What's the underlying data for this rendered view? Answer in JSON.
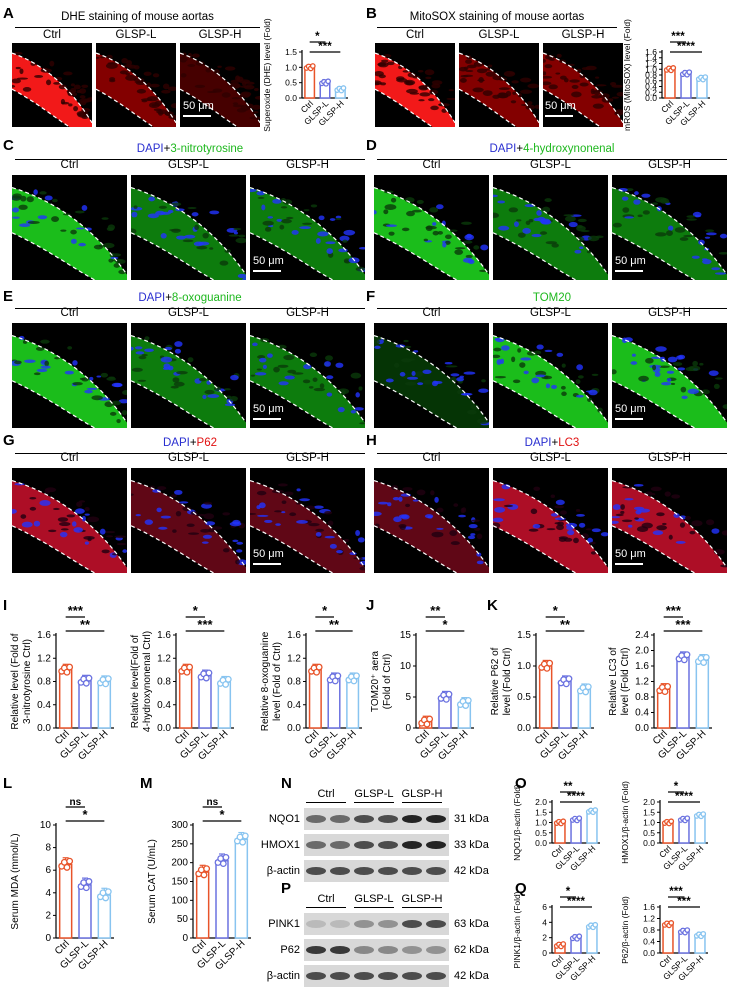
{
  "panels": {
    "A": {
      "label": "A",
      "title": "DHE staining of mouse aortas",
      "cols": [
        "Ctrl",
        "GLSP-L",
        "GLSP-H"
      ],
      "scale": "50 μm"
    },
    "B": {
      "label": "B",
      "title": "MitoSOX staining of mouse aortas",
      "cols": [
        "Ctrl",
        "GLSP-L",
        "GLSP-H"
      ],
      "scale": "50 μm"
    },
    "C": {
      "label": "C",
      "title_a": "DAPI",
      "title_plus": "+",
      "title_b": "3-nitrotyrosine",
      "cols": [
        "Ctrl",
        "GLSP-L",
        "GLSP-H"
      ],
      "scale": "50 μm"
    },
    "D": {
      "label": "D",
      "title_a": "DAPI",
      "title_plus": "+",
      "title_b": "4-hydroxynonenal",
      "cols": [
        "Ctrl",
        "GLSP-L",
        "GLSP-H"
      ],
      "scale": "50 μm"
    },
    "E": {
      "label": "E",
      "title_a": "DAPI",
      "title_plus": "+",
      "title_b": "8-oxoguanine",
      "cols": [
        "Ctrl",
        "GLSP-L",
        "GLSP-H"
      ],
      "scale": "50 μm"
    },
    "F": {
      "label": "F",
      "title_b": "TOM20",
      "cols": [
        "Ctrl",
        "GLSP-L",
        "GLSP-H"
      ],
      "scale": "50 μm"
    },
    "G": {
      "label": "G",
      "title_a": "DAPI",
      "title_plus": "+",
      "title_b": "P62",
      "cols": [
        "Ctrl",
        "GLSP-L",
        "GLSP-H"
      ],
      "scale": "50 μm"
    },
    "H": {
      "label": "H",
      "title_a": "DAPI",
      "title_plus": "+",
      "title_b": "LC3",
      "cols": [
        "Ctrl",
        "GLSP-L",
        "GLSP-H"
      ],
      "scale": "50 μm"
    },
    "I": {
      "label": "I"
    },
    "J": {
      "label": "J"
    },
    "K": {
      "label": "K"
    },
    "L": {
      "label": "L"
    },
    "M": {
      "label": "M"
    },
    "N": {
      "label": "N",
      "groups": [
        "Ctrl",
        "GLSP-L",
        "GLSP-H"
      ],
      "bands": [
        {
          "name": "NQO1",
          "kda": "31 kDa"
        },
        {
          "name": "HMOX1",
          "kda": "33 kDa"
        },
        {
          "name": "β-actin",
          "kda": "42 kDa"
        }
      ]
    },
    "O": {
      "label": "O"
    },
    "P": {
      "label": "P",
      "groups": [
        "Ctrl",
        "GLSP-L",
        "GLSP-H"
      ],
      "bands": [
        {
          "name": "PINK1",
          "kda": "63 kDa"
        },
        {
          "name": "P62",
          "kda": "62 kDa"
        },
        {
          "name": "β-actin",
          "kda": "42 kDa"
        }
      ]
    },
    "Q": {
      "label": "Q"
    }
  },
  "colors": {
    "ctrl": "#e8542a",
    "glspl": "#6b72e0",
    "glsph": "#88c4f0",
    "dhe": "#ff1a1a",
    "green": "#22dd22",
    "dapi": "#2233ff"
  },
  "chart_data": [
    {
      "id": "A",
      "type": "bar",
      "categories": [
        "Ctrl",
        "GLSP-L",
        "GLSP-H"
      ],
      "values": [
        1.0,
        0.5,
        0.28
      ],
      "ylabel": "Superoxide (DHE) level (Fold)",
      "ylim": [
        0,
        1.5
      ],
      "yticks": [
        "0.0",
        "0.5",
        "1.0",
        "1.5"
      ],
      "sig": [
        {
          "a": 0,
          "b": 1,
          "text": "*"
        },
        {
          "a": 0,
          "b": 2,
          "text": "***"
        }
      ]
    },
    {
      "id": "B",
      "type": "bar",
      "categories": [
        "Ctrl",
        "GLSP-L",
        "GLSP-H"
      ],
      "values": [
        1.0,
        0.85,
        0.68
      ],
      "ylabel": "mROS (MitoSOX) level (Fold)",
      "ylim": [
        0,
        1.6
      ],
      "yticks": [
        "0.0",
        "0.2",
        "0.4",
        "0.6",
        "0.8",
        "1.0",
        "1.2",
        "1.4",
        "1.6"
      ],
      "sig": [
        {
          "a": 0,
          "b": 1,
          "text": "***"
        },
        {
          "a": 0,
          "b": 2,
          "text": "****"
        }
      ]
    },
    {
      "id": "I1",
      "type": "bar",
      "categories": [
        "Ctrl",
        "GLSP-L",
        "GLSP-H"
      ],
      "values": [
        1.0,
        0.81,
        0.8
      ],
      "ylabel": "Relative 3-nitrotyrosine level (Fold of Ctrl)",
      "ylim": [
        0,
        1.6
      ],
      "yticks": [
        "0.0",
        "0.4",
        "0.8",
        "1.2",
        "1.6"
      ],
      "sig": [
        {
          "a": 0,
          "b": 1,
          "text": "***"
        },
        {
          "a": 0,
          "b": 2,
          "text": "**"
        }
      ]
    },
    {
      "id": "I2",
      "type": "bar",
      "categories": [
        "Ctrl",
        "GLSP-L",
        "GLSP-H"
      ],
      "values": [
        1.0,
        0.9,
        0.79
      ],
      "ylabel": "Relative 4-hydroxynonenal level(Fold of Ctrl)",
      "ylim": [
        0,
        1.6
      ],
      "yticks": [
        "0.0",
        "0.4",
        "0.8",
        "1.2",
        "1.6"
      ],
      "sig": [
        {
          "a": 0,
          "b": 1,
          "text": "*"
        },
        {
          "a": 0,
          "b": 2,
          "text": "***"
        }
      ]
    },
    {
      "id": "I3",
      "type": "bar",
      "categories": [
        "Ctrl",
        "GLSP-L",
        "GLSP-H"
      ],
      "values": [
        1.0,
        0.85,
        0.85
      ],
      "ylabel": "Relative 8-oxoguanine level (Fold of Ctrl)",
      "ylim": [
        0,
        1.6
      ],
      "yticks": [
        "0.0",
        "0.4",
        "0.8",
        "1.2",
        "1.6"
      ],
      "sig": [
        {
          "a": 0,
          "b": 1,
          "text": "*"
        },
        {
          "a": 0,
          "b": 2,
          "text": "**"
        }
      ]
    },
    {
      "id": "J",
      "type": "bar",
      "categories": [
        "Ctrl",
        "GLSP-L",
        "GLSP-H"
      ],
      "values": [
        1.0,
        5.0,
        4.0
      ],
      "ylabel": "TOM20⁺ aera (Fold of Ctrl)",
      "ylim": [
        0,
        15
      ],
      "yticks": [
        "0",
        "5",
        "10",
        "15"
      ],
      "sig": [
        {
          "a": 0,
          "b": 1,
          "text": "**"
        },
        {
          "a": 0,
          "b": 2,
          "text": "*"
        }
      ]
    },
    {
      "id": "K1",
      "type": "bar",
      "categories": [
        "Ctrl",
        "GLSP-L",
        "GLSP-H"
      ],
      "values": [
        1.0,
        0.75,
        0.62
      ],
      "ylabel": "Relative P62 level (Fold of Ctrl)",
      "ylim": [
        0,
        1.5
      ],
      "yticks": [
        "0.0",
        "0.5",
        "1.0",
        "1.5"
      ],
      "sig": [
        {
          "a": 0,
          "b": 1,
          "text": "*"
        },
        {
          "a": 0,
          "b": 2,
          "text": "**"
        }
      ]
    },
    {
      "id": "K2",
      "type": "bar",
      "categories": [
        "Ctrl",
        "GLSP-L",
        "GLSP-H"
      ],
      "values": [
        1.0,
        1.82,
        1.75
      ],
      "ylabel": "Relative LC3 level (Fold of Ctrl)",
      "ylim": [
        0,
        2.4
      ],
      "yticks": [
        "0.0",
        "0.4",
        "0.8",
        "1.2",
        "1.6",
        "2.0",
        "2.4"
      ],
      "sig": [
        {
          "a": 0,
          "b": 1,
          "text": "***"
        },
        {
          "a": 0,
          "b": 2,
          "text": "***"
        }
      ]
    },
    {
      "id": "L",
      "type": "bar",
      "categories": [
        "Ctrl",
        "GLSP-L",
        "GLSP-H"
      ],
      "values": [
        6.5,
        4.7,
        3.8
      ],
      "ylabel": "Serum MDA (mmol/L)",
      "ylim": [
        0,
        10
      ],
      "yticks": [
        "0",
        "2",
        "4",
        "6",
        "8",
        "10"
      ],
      "sig": [
        {
          "a": 0,
          "b": 1,
          "text": "ns"
        },
        {
          "a": 0,
          "b": 2,
          "text": "*"
        }
      ]
    },
    {
      "id": "M",
      "type": "bar",
      "categories": [
        "Ctrl",
        "GLSP-L",
        "GLSP-H"
      ],
      "values": [
        175,
        205,
        262
      ],
      "ylabel": "Serum CAT (U/mL)",
      "ylim": [
        0,
        300
      ],
      "yticks": [
        "0",
        "50",
        "100",
        "150",
        "200",
        "250",
        "300"
      ],
      "sig": [
        {
          "a": 0,
          "b": 1,
          "text": "ns"
        },
        {
          "a": 0,
          "b": 2,
          "text": "*"
        }
      ]
    },
    {
      "id": "O1",
      "type": "bar",
      "categories": [
        "Ctrl",
        "GLSP-L",
        "GLSP-H"
      ],
      "values": [
        1.0,
        1.15,
        1.55
      ],
      "ylabel": "NQO1/β-actin (Fold)",
      "ylim": [
        0,
        2.0
      ],
      "yticks": [
        "0.0",
        "0.5",
        "1.0",
        "1.5",
        "2.0"
      ],
      "sig": [
        {
          "a": 0,
          "b": 1,
          "text": "**"
        },
        {
          "a": 0,
          "b": 2,
          "text": "****"
        }
      ]
    },
    {
      "id": "O2",
      "type": "bar",
      "categories": [
        "Ctrl",
        "GLSP-L",
        "GLSP-H"
      ],
      "values": [
        1.0,
        1.15,
        1.35
      ],
      "ylabel": "HMOX1/β-actin (Fold)",
      "ylim": [
        0,
        2.0
      ],
      "yticks": [
        "0.0",
        "0.5",
        "1.0",
        "1.5",
        "2.0"
      ],
      "sig": [
        {
          "a": 0,
          "b": 1,
          "text": "*"
        },
        {
          "a": 0,
          "b": 2,
          "text": "****"
        }
      ]
    },
    {
      "id": "Q1",
      "type": "bar",
      "categories": [
        "Ctrl",
        "GLSP-L",
        "GLSP-H"
      ],
      "values": [
        1.0,
        2.0,
        3.5
      ],
      "ylabel": "PINK1/β-actin (Fold)",
      "ylim": [
        0,
        6
      ],
      "yticks": [
        "0",
        "2",
        "4",
        "6"
      ],
      "sig": [
        {
          "a": 0,
          "b": 1,
          "text": "*"
        },
        {
          "a": 0,
          "b": 2,
          "text": "****"
        }
      ]
    },
    {
      "id": "Q2",
      "type": "bar",
      "categories": [
        "Ctrl",
        "GLSP-L",
        "GLSP-H"
      ],
      "values": [
        1.0,
        0.75,
        0.62
      ],
      "ylabel": "P62/β-actin (Fold)",
      "ylim": [
        0,
        1.6
      ],
      "yticks": [
        "0.0",
        "0.4",
        "0.8",
        "1.2",
        "1.6"
      ],
      "sig": [
        {
          "a": 0,
          "b": 1,
          "text": "***"
        },
        {
          "a": 0,
          "b": 2,
          "text": "***"
        }
      ]
    }
  ]
}
